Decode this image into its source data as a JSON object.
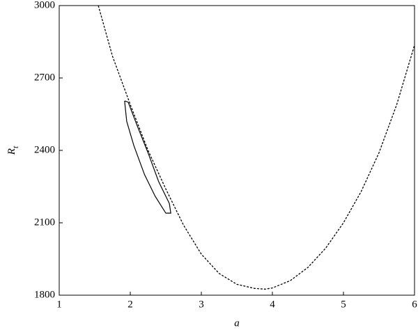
{
  "chart_data": {
    "type": "line",
    "x_label": "a",
    "y_label": "R",
    "y_label_sub": "t",
    "xlim": [
      1,
      6
    ],
    "xticks": [
      1,
      2,
      3,
      4,
      5,
      6
    ],
    "ylim": [
      1800,
      3000
    ],
    "yticks": [
      1800,
      2100,
      2400,
      2700,
      3000
    ],
    "series": [
      {
        "color": "#000000",
        "dashed": true,
        "x": [
          1.55,
          1.75,
          2,
          2.25,
          2.5,
          2.75,
          3,
          3.25,
          3.5,
          3.75,
          3.9,
          4,
          4.25,
          4.5,
          4.75,
          5,
          5.25,
          5.5,
          5.75,
          6
        ],
        "values": [
          3000,
          2790,
          2590,
          2400,
          2240,
          2090,
          1970,
          1890,
          1845,
          1828,
          1825,
          1830,
          1860,
          1915,
          1995,
          2100,
          2230,
          2390,
          2590,
          2836
        ]
      },
      {
        "color": "#000000",
        "dashed": false,
        "x": [
          1.92,
          1.95,
          2.05,
          2.2,
          2.35,
          2.5,
          2.57,
          2.55,
          2.4,
          2.25,
          2.1,
          1.97,
          1.92
        ],
        "values": [
          2605,
          2520,
          2420,
          2300,
          2210,
          2140,
          2140,
          2180,
          2270,
          2390,
          2500,
          2600,
          2605
        ]
      }
    ]
  }
}
